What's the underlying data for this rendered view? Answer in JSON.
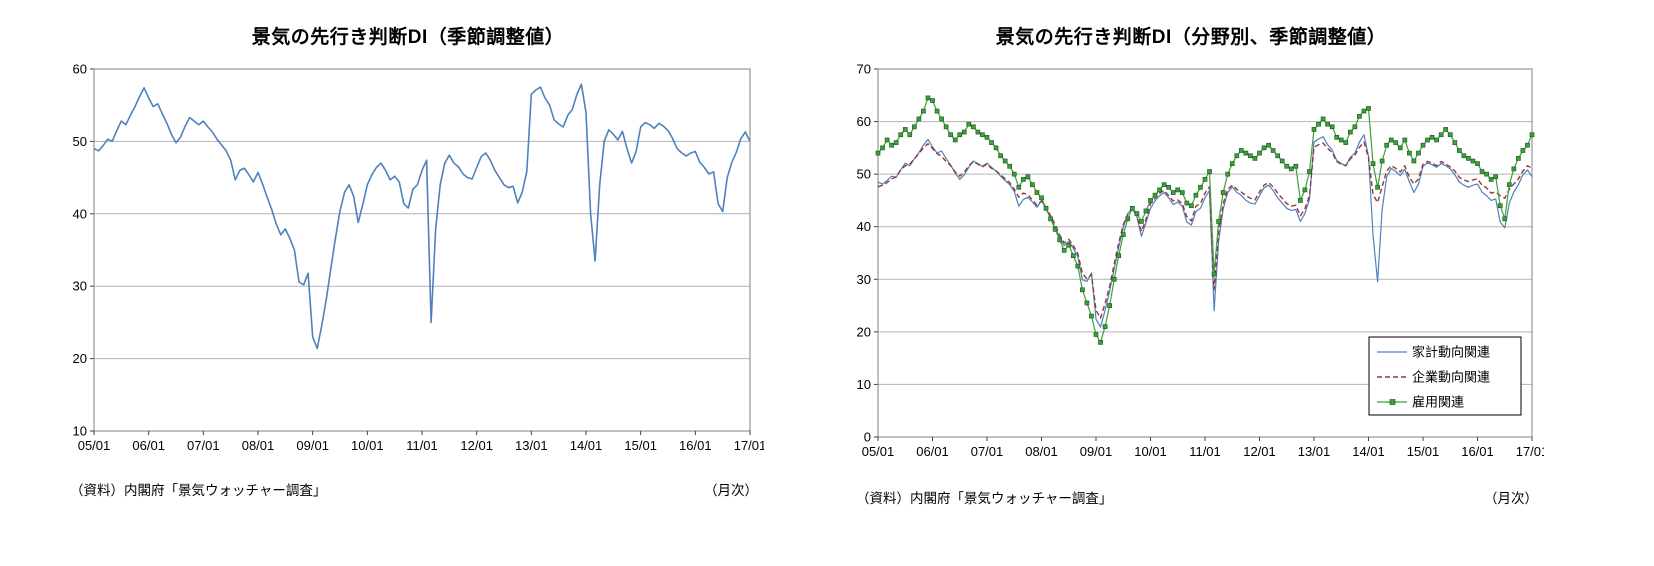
{
  "chart_data": [
    {
      "type": "line",
      "title": "景気の先行き判断DI（季節調整値）",
      "source_note": "（資料）内閣府「景気ウォッチャー調査」",
      "unit_note": "（月次）",
      "x_start": "2005/01",
      "x_freq": "monthly",
      "xtick_labels": [
        "05/01",
        "06/01",
        "07/01",
        "08/01",
        "09/01",
        "10/01",
        "11/01",
        "12/01",
        "13/01",
        "14/01",
        "15/01",
        "16/01",
        "17/01"
      ],
      "ylim": [
        10,
        60
      ],
      "ytick_step": 10,
      "grid": true,
      "legend": false,
      "series": [
        {
          "name": "景気の先行き判断DI（季節調整値）",
          "color": "#4f81bd",
          "style": "solid",
          "marker": "none",
          "width": 1.6,
          "values": [
            49.0,
            48.7,
            49.4,
            50.3,
            50.0,
            51.5,
            52.8,
            52.3,
            53.6,
            54.8,
            56.2,
            57.4,
            56.0,
            54.8,
            55.2,
            53.8,
            52.5,
            51.0,
            49.8,
            50.6,
            52.1,
            53.3,
            52.8,
            52.3,
            52.8,
            52.0,
            51.3,
            50.3,
            49.5,
            48.7,
            47.4,
            44.7,
            46.0,
            46.3,
            45.4,
            44.4,
            45.7,
            44.1,
            42.3,
            40.6,
            38.6,
            37.1,
            37.9,
            36.6,
            35.0,
            30.6,
            30.2,
            31.8,
            23.0,
            21.4,
            24.6,
            28.2,
            32.5,
            36.6,
            40.4,
            43.0,
            44.0,
            42.4,
            38.8,
            41.3,
            44.0,
            45.4,
            46.4,
            47.0,
            46.0,
            44.7,
            45.2,
            44.4,
            41.4,
            40.8,
            43.4,
            44.0,
            46.0,
            47.4,
            25.0,
            38.0,
            44.0,
            47.0,
            48.1,
            47.0,
            46.5,
            45.5,
            45.0,
            44.8,
            46.4,
            47.9,
            48.4,
            47.4,
            46.0,
            45.0,
            44.0,
            43.6,
            43.8,
            41.5,
            43.0,
            45.8,
            56.5,
            57.1,
            57.5,
            56.0,
            55.0,
            53.0,
            52.4,
            52.0,
            53.6,
            54.4,
            56.5,
            57.9,
            54.0,
            40.0,
            33.5,
            44.0,
            50.0,
            51.6,
            51.0,
            50.2,
            51.4,
            49.0,
            47.0,
            48.6,
            52.0,
            52.6,
            52.3,
            51.8,
            52.5,
            52.1,
            51.5,
            50.4,
            49.0,
            48.4,
            48.0,
            48.4,
            48.6,
            47.1,
            46.4,
            45.5,
            45.8,
            41.4,
            40.3,
            45.0,
            47.1,
            48.5,
            50.4,
            51.3,
            50.0
          ]
        }
      ]
    },
    {
      "type": "line",
      "title": "景気の先行き判断DI（分野別、季節調整値）",
      "source_note": "（資料）内閣府「景気ウォッチャー調査」",
      "unit_note": "（月次）",
      "x_start": "2005/01",
      "x_freq": "monthly",
      "xtick_labels": [
        "05/01",
        "06/01",
        "07/01",
        "08/01",
        "09/01",
        "10/01",
        "11/01",
        "12/01",
        "13/01",
        "14/01",
        "15/01",
        "16/01",
        "17/01"
      ],
      "ylim": [
        0,
        70
      ],
      "ytick_step": 10,
      "grid": true,
      "legend": true,
      "legend_position": "lower-right",
      "series": [
        {
          "name": "家計動向関連",
          "color": "#4f81bd",
          "style": "solid",
          "marker": "none",
          "width": 1.2,
          "values": [
            48.5,
            48.1,
            48.8,
            49.6,
            49.4,
            50.8,
            52.1,
            51.6,
            52.9,
            54.1,
            55.5,
            56.6,
            55.2,
            54.0,
            54.4,
            53.0,
            51.7,
            50.2,
            49.0,
            49.9,
            51.3,
            52.5,
            52.0,
            51.5,
            52.1,
            51.3,
            50.6,
            49.6,
            48.8,
            48.0,
            46.7,
            43.9,
            45.2,
            45.6,
            44.7,
            43.7,
            45.0,
            43.4,
            41.6,
            39.9,
            37.9,
            36.4,
            37.2,
            35.9,
            34.3,
            29.9,
            29.6,
            31.2,
            22.4,
            20.9,
            24.1,
            27.7,
            32.0,
            36.1,
            39.9,
            42.5,
            43.5,
            41.9,
            38.2,
            40.8,
            43.5,
            44.9,
            45.9,
            46.5,
            45.5,
            44.2,
            44.7,
            43.9,
            40.9,
            40.3,
            42.9,
            43.5,
            45.5,
            46.9,
            24.0,
            37.2,
            43.4,
            46.5,
            47.6,
            46.5,
            46.0,
            45.0,
            44.5,
            44.3,
            45.9,
            47.4,
            47.9,
            46.9,
            45.5,
            44.5,
            43.5,
            43.1,
            43.3,
            41.0,
            42.5,
            45.3,
            56.1,
            56.7,
            57.1,
            55.6,
            54.6,
            52.6,
            52.0,
            51.6,
            53.2,
            54.0,
            56.1,
            57.5,
            53.4,
            38.5,
            29.5,
            43.2,
            49.5,
            51.1,
            50.5,
            49.7,
            50.9,
            48.5,
            46.5,
            48.1,
            51.5,
            52.1,
            51.8,
            51.3,
            52.0,
            51.6,
            51.0,
            49.9,
            48.5,
            47.9,
            47.5,
            47.9,
            48.1,
            46.6,
            45.9,
            45.0,
            45.3,
            40.9,
            39.8,
            44.5,
            46.6,
            48.0,
            49.9,
            50.8,
            49.5
          ]
        },
        {
          "name": "企業動向関連",
          "color": "#953735",
          "style": "dashed",
          "marker": "none",
          "width": 1.4,
          "values": [
            47.6,
            47.9,
            48.4,
            49.1,
            49.5,
            50.8,
            51.6,
            51.9,
            52.9,
            53.9,
            55.0,
            55.8,
            54.9,
            53.9,
            53.4,
            52.4,
            51.6,
            50.4,
            49.6,
            50.4,
            51.6,
            52.4,
            51.9,
            51.4,
            51.9,
            51.1,
            50.6,
            49.9,
            49.1,
            48.4,
            47.1,
            45.6,
            46.4,
            46.1,
            45.1,
            44.1,
            44.9,
            43.6,
            42.1,
            40.4,
            38.4,
            36.9,
            37.6,
            36.4,
            34.9,
            31.1,
            30.1,
            30.9,
            24.1,
            22.6,
            25.4,
            28.6,
            32.9,
            36.9,
            40.4,
            42.4,
            43.6,
            41.9,
            39.1,
            41.4,
            44.4,
            45.4,
            46.4,
            46.9,
            45.9,
            44.9,
            45.1,
            44.4,
            41.9,
            41.1,
            43.9,
            44.4,
            46.4,
            47.6,
            28.0,
            39.1,
            44.4,
            47.1,
            47.9,
            47.1,
            46.6,
            45.9,
            45.4,
            45.1,
            46.6,
            47.9,
            48.4,
            47.6,
            46.4,
            45.4,
            44.4,
            43.9,
            44.1,
            42.1,
            43.4,
            45.9,
            55.1,
            55.6,
            55.9,
            54.9,
            54.1,
            52.4,
            51.9,
            51.6,
            52.9,
            53.6,
            55.1,
            56.1,
            53.1,
            46.1,
            44.6,
            47.6,
            50.6,
            51.6,
            51.1,
            50.4,
            51.6,
            49.4,
            48.1,
            49.1,
            51.9,
            52.4,
            52.1,
            51.6,
            52.4,
            51.9,
            51.4,
            50.6,
            49.4,
            48.9,
            48.6,
            48.9,
            49.1,
            47.9,
            47.4,
            46.4,
            46.6,
            45.9,
            45.4,
            47.1,
            48.1,
            49.1,
            50.6,
            51.6,
            51.1
          ]
        },
        {
          "name": "雇用関連",
          "color": "#3f9e3f",
          "marker_stroke": "#1c641c",
          "style": "solid",
          "marker": "square",
          "width": 1.2,
          "values": [
            54.0,
            55.0,
            56.5,
            55.5,
            56.0,
            57.5,
            58.5,
            57.5,
            59.0,
            60.5,
            62.0,
            64.5,
            64.0,
            62.0,
            60.5,
            59.0,
            57.5,
            56.5,
            57.5,
            58.0,
            59.5,
            59.0,
            58.0,
            57.5,
            57.0,
            56.0,
            55.0,
            53.5,
            52.5,
            51.5,
            50.0,
            47.5,
            49.0,
            49.5,
            48.0,
            46.5,
            45.5,
            43.5,
            41.5,
            39.5,
            37.5,
            35.5,
            36.5,
            34.5,
            32.5,
            28.0,
            25.5,
            23.0,
            19.5,
            18.0,
            21.0,
            25.0,
            30.0,
            34.5,
            38.5,
            41.5,
            43.5,
            42.5,
            41.0,
            43.0,
            45.0,
            46.0,
            47.0,
            48.0,
            47.5,
            46.5,
            47.0,
            46.5,
            44.5,
            44.0,
            46.0,
            47.5,
            49.0,
            50.5,
            31.0,
            41.0,
            46.5,
            50.0,
            52.0,
            53.5,
            54.5,
            54.0,
            53.5,
            53.0,
            54.0,
            55.0,
            55.5,
            54.5,
            53.5,
            52.5,
            51.5,
            51.0,
            51.5,
            45.0,
            47.0,
            50.5,
            58.5,
            59.5,
            60.5,
            59.5,
            59.0,
            57.0,
            56.5,
            56.0,
            58.0,
            59.0,
            61.0,
            62.0,
            62.5,
            52.0,
            47.5,
            52.5,
            55.5,
            56.5,
            56.0,
            55.0,
            56.5,
            54.0,
            52.5,
            54.0,
            55.5,
            56.5,
            57.0,
            56.5,
            57.5,
            58.5,
            57.5,
            56.0,
            54.5,
            53.5,
            53.0,
            52.5,
            52.0,
            50.5,
            50.0,
            49.0,
            49.5,
            44.0,
            41.5,
            48.0,
            51.0,
            53.0,
            54.5,
            55.5,
            57.5
          ]
        }
      ]
    }
  ]
}
